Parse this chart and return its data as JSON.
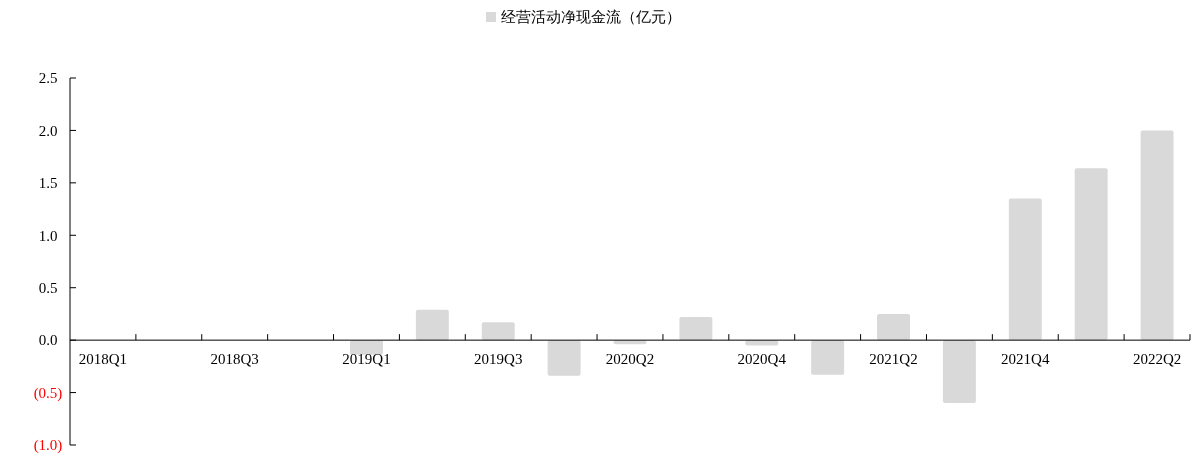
{
  "chart_data": {
    "type": "bar",
    "categories": [
      "2018Q1",
      null,
      "2018Q3",
      null,
      "2019Q1",
      null,
      "2019Q3",
      null,
      "2020Q2",
      null,
      "2020Q4",
      null,
      "2021Q2",
      null,
      "2021Q4",
      null,
      "2022Q2"
    ],
    "series": [
      {
        "name": "经营活动净现金流（亿元）",
        "color": "#d9d9d9",
        "values": [
          null,
          null,
          null,
          null,
          -0.14,
          0.29,
          0.17,
          -0.34,
          -0.04,
          0.22,
          -0.05,
          -0.33,
          0.25,
          -0.6,
          1.35,
          1.64,
          2.0
        ]
      }
    ],
    "ylim": [
      -1.0,
      2.5
    ],
    "yticks": [
      {
        "value": -1.0,
        "label": "(1.0)"
      },
      {
        "value": -0.5,
        "label": "(0.5)"
      },
      {
        "value": 0,
        "label": "0.0"
      },
      {
        "value": 0.5,
        "label": "0.5"
      },
      {
        "value": 1.0,
        "label": "1.0"
      },
      {
        "value": 1.5,
        "label": "1.5"
      },
      {
        "value": 2.0,
        "label": "2.0"
      },
      {
        "value": 2.5,
        "label": "2.5"
      }
    ],
    "legend": "top",
    "grid": false
  }
}
